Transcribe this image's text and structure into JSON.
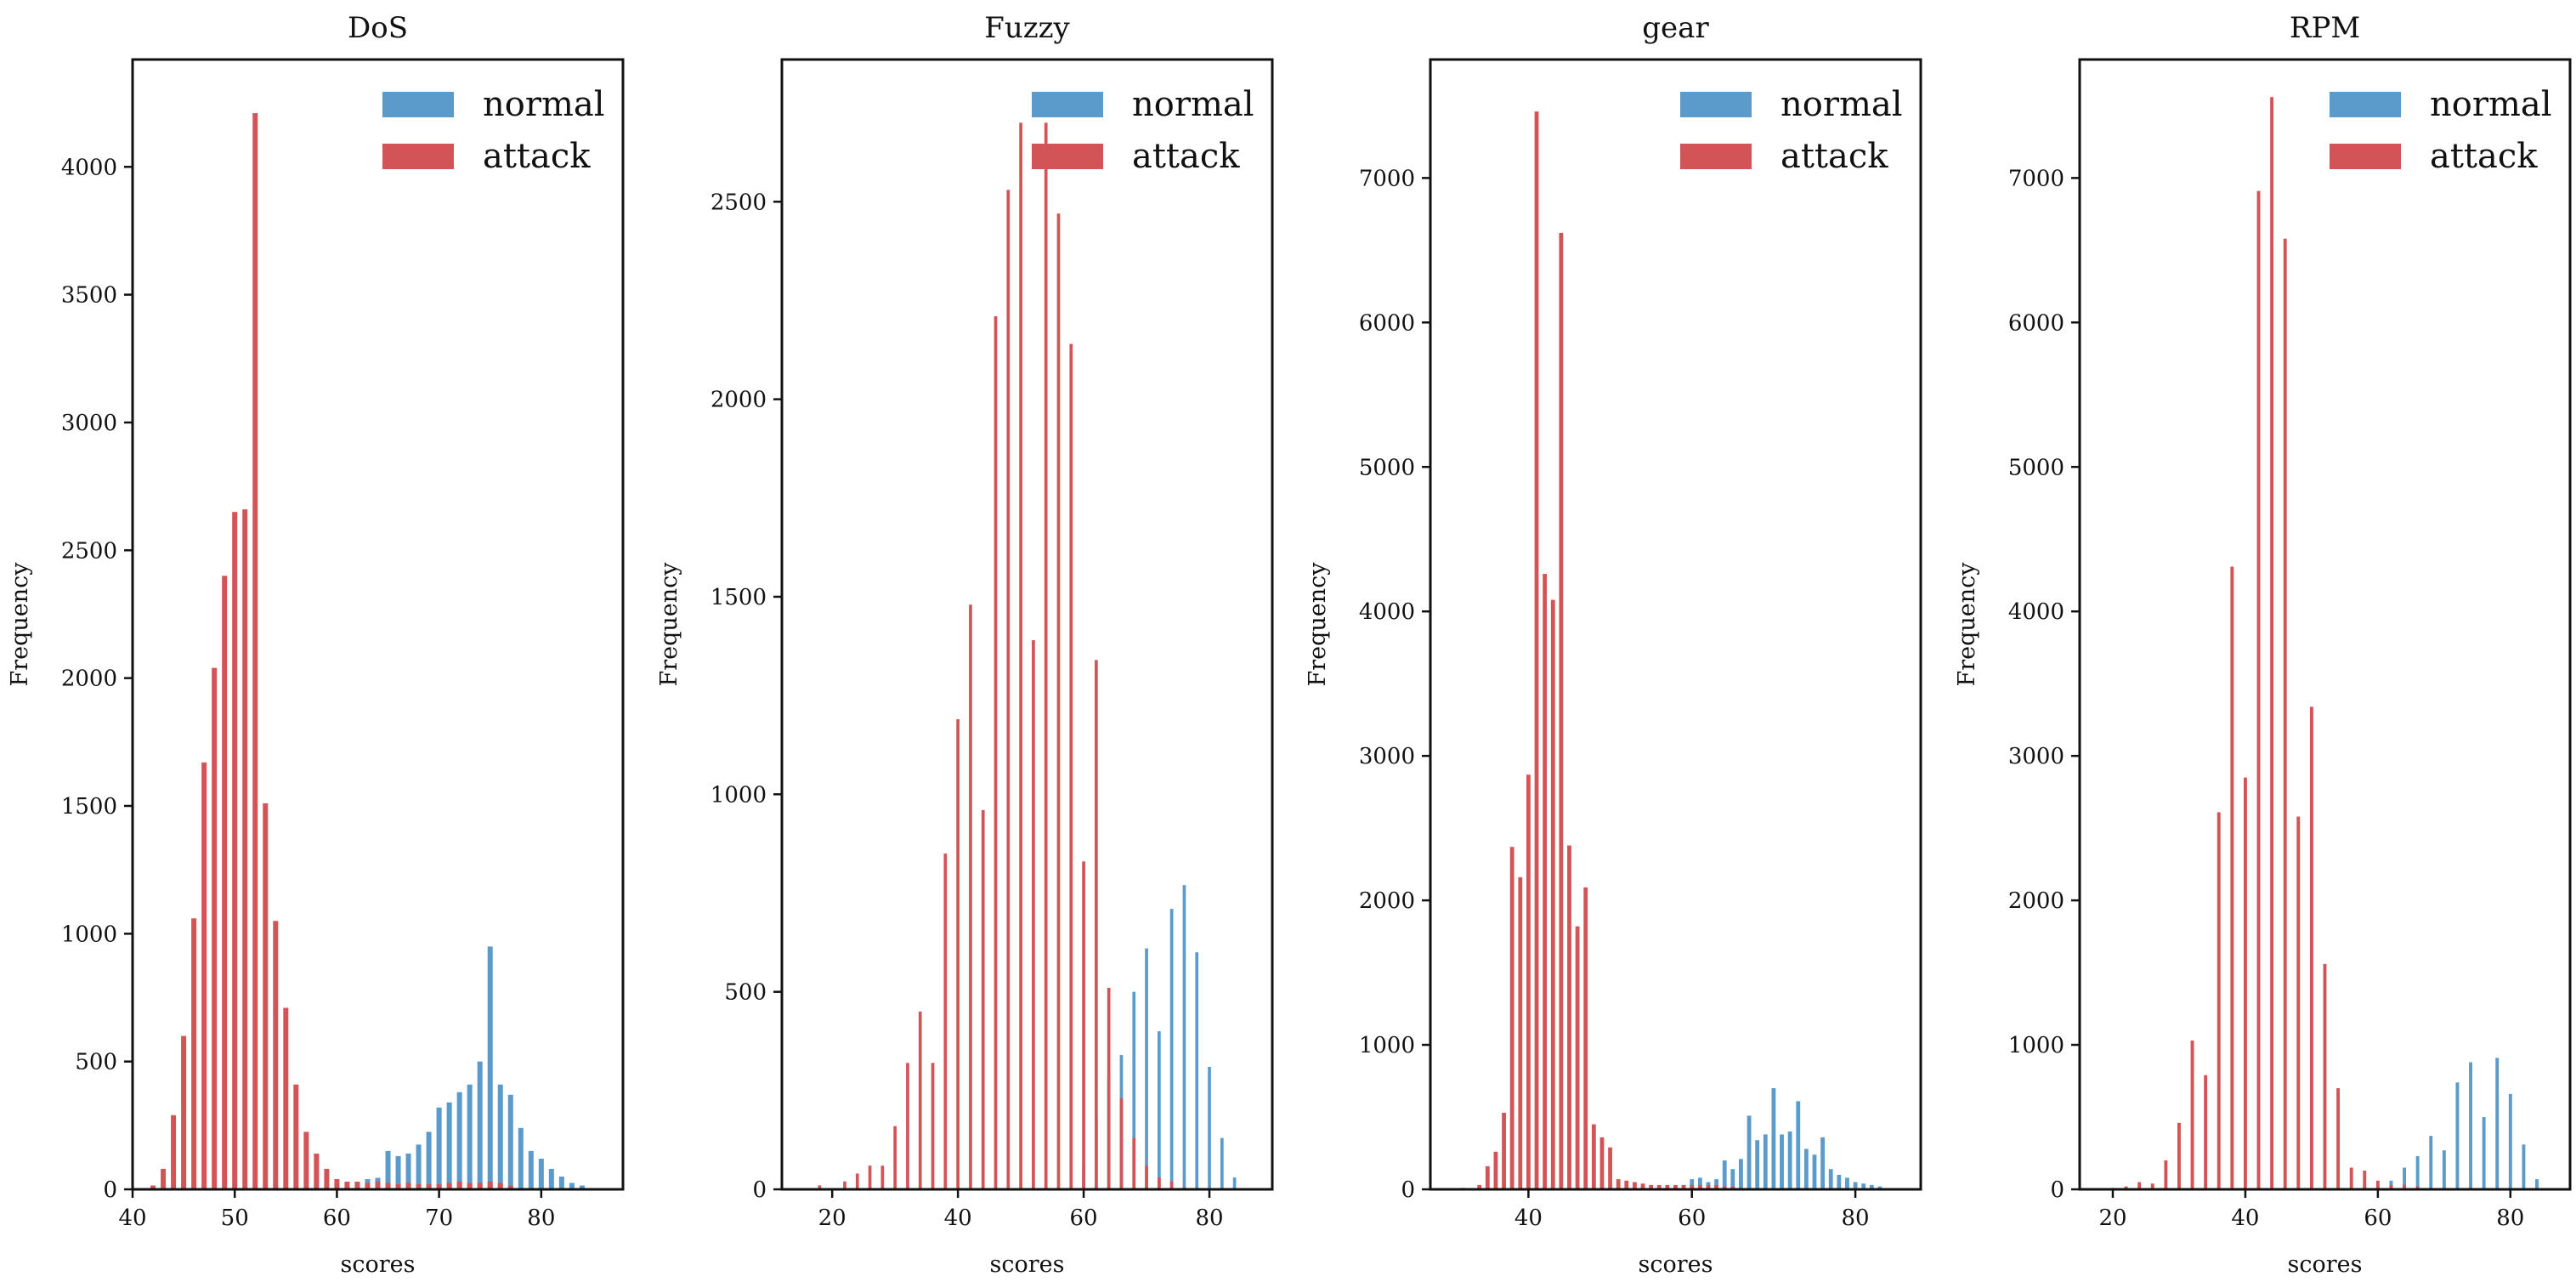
{
  "colors": {
    "normal": "#5a9bcc",
    "attack": "#d35456"
  },
  "chart_data": [
    {
      "type": "bar",
      "title": "DoS",
      "xlabel": "scores",
      "ylabel": "Frequency",
      "xlim": [
        40,
        88
      ],
      "ylim": [
        0,
        4420
      ],
      "xticks": [
        40,
        50,
        60,
        70,
        80
      ],
      "yticks": [
        0,
        500,
        1000,
        1500,
        2000,
        2500,
        3000,
        3500,
        4000
      ],
      "legend": {
        "position": "top-right",
        "labels": [
          "normal",
          "attack"
        ]
      },
      "series": [
        {
          "name": "normal",
          "x": [
            61,
            62,
            63,
            64,
            65,
            66,
            67,
            68,
            69,
            70,
            71,
            72,
            73,
            74,
            75,
            76,
            77,
            78,
            79,
            80,
            81,
            82,
            83,
            84
          ],
          "values": [
            10,
            25,
            40,
            45,
            150,
            130,
            140,
            175,
            225,
            320,
            340,
            380,
            410,
            500,
            950,
            410,
            370,
            240,
            150,
            120,
            80,
            50,
            25,
            15
          ]
        },
        {
          "name": "attack",
          "x": [
            42,
            43,
            44,
            45,
            46,
            47,
            48,
            49,
            50,
            51,
            52,
            53,
            54,
            55,
            56,
            57,
            58,
            59,
            60,
            61,
            62,
            63,
            64,
            65,
            66,
            67,
            68,
            69,
            70,
            71,
            72,
            73,
            74,
            75,
            76,
            77
          ],
          "values": [
            15,
            80,
            290,
            600,
            1060,
            1670,
            2040,
            2400,
            2650,
            2660,
            4210,
            1510,
            1050,
            710,
            410,
            225,
            140,
            80,
            40,
            30,
            30,
            25,
            30,
            25,
            20,
            25,
            20,
            20,
            20,
            25,
            30,
            25,
            25,
            30,
            25,
            15
          ]
        }
      ]
    },
    {
      "type": "bar",
      "title": "Fuzzy",
      "xlabel": "scores",
      "ylabel": "Frequency",
      "xlim": [
        12,
        90
      ],
      "ylim": [
        0,
        2860
      ],
      "xticks": [
        20,
        40,
        60,
        80
      ],
      "yticks": [
        0,
        500,
        1000,
        1500,
        2000,
        2500
      ],
      "legend": {
        "position": "top-right",
        "labels": [
          "normal",
          "attack"
        ]
      },
      "series": [
        {
          "name": "normal",
          "x": [
            58,
            60,
            62,
            64,
            66,
            68,
            70,
            72,
            74,
            76,
            78,
            80,
            82,
            84
          ],
          "values": [
            10,
            60,
            180,
            280,
            340,
            500,
            610,
            400,
            710,
            770,
            600,
            310,
            130,
            30
          ]
        },
        {
          "name": "attack",
          "x": [
            18,
            22,
            24,
            26,
            28,
            30,
            32,
            34,
            36,
            38,
            40,
            42,
            44,
            46,
            48,
            50,
            52,
            54,
            56,
            58,
            60,
            62,
            64,
            66,
            68,
            70,
            72,
            74,
            76
          ],
          "values": [
            10,
            20,
            40,
            60,
            60,
            160,
            320,
            450,
            320,
            850,
            1190,
            1480,
            960,
            2210,
            2530,
            2700,
            1390,
            2700,
            2470,
            2140,
            830,
            1340,
            510,
            230,
            130,
            60,
            30,
            20,
            5
          ]
        }
      ]
    },
    {
      "type": "bar",
      "title": "gear",
      "xlabel": "scores",
      "ylabel": "Frequency",
      "xlim": [
        28,
        88
      ],
      "ylim": [
        0,
        7820
      ],
      "xticks": [
        40,
        60,
        80
      ],
      "yticks": [
        0,
        1000,
        2000,
        3000,
        4000,
        5000,
        6000,
        7000
      ],
      "legend": {
        "position": "top-right",
        "labels": [
          "normal",
          "attack"
        ]
      },
      "series": [
        {
          "name": "normal",
          "x": [
            58,
            59,
            60,
            61,
            62,
            63,
            64,
            65,
            66,
            67,
            68,
            69,
            70,
            71,
            72,
            73,
            74,
            75,
            76,
            77,
            78,
            79,
            80,
            81,
            82,
            83
          ],
          "values": [
            20,
            30,
            70,
            80,
            50,
            70,
            200,
            140,
            210,
            510,
            340,
            380,
            700,
            380,
            400,
            610,
            280,
            240,
            360,
            140,
            100,
            80,
            50,
            40,
            30,
            20
          ]
        },
        {
          "name": "attack",
          "x": [
            32,
            34,
            35,
            36,
            37,
            38,
            39,
            40,
            41,
            42,
            43,
            44,
            45,
            46,
            47,
            48,
            49,
            50,
            51,
            52,
            53,
            54,
            55,
            56,
            57,
            58,
            59,
            60,
            61,
            62,
            63,
            64,
            65,
            66
          ],
          "values": [
            10,
            30,
            160,
            260,
            530,
            2370,
            2160,
            2870,
            7460,
            4260,
            4080,
            6620,
            2380,
            1820,
            2090,
            450,
            360,
            290,
            70,
            60,
            50,
            40,
            30,
            30,
            30,
            30,
            30,
            30,
            30,
            30,
            30,
            20,
            20,
            10
          ]
        }
      ]
    },
    {
      "type": "bar",
      "title": "RPM",
      "xlabel": "scores",
      "ylabel": "Frequency",
      "xlim": [
        15,
        89
      ],
      "ylim": [
        0,
        7820
      ],
      "xticks": [
        20,
        40,
        60,
        80
      ],
      "yticks": [
        0,
        1000,
        2000,
        3000,
        4000,
        5000,
        6000,
        7000
      ],
      "legend": {
        "position": "top-right",
        "labels": [
          "normal",
          "attack"
        ]
      },
      "series": [
        {
          "name": "normal",
          "x": [
            58,
            60,
            62,
            64,
            66,
            68,
            70,
            72,
            74,
            76,
            78,
            80,
            82,
            84
          ],
          "values": [
            20,
            30,
            60,
            150,
            230,
            370,
            270,
            740,
            880,
            500,
            910,
            660,
            310,
            70
          ]
        },
        {
          "name": "attack",
          "x": [
            20,
            22,
            24,
            26,
            28,
            30,
            32,
            34,
            36,
            38,
            40,
            42,
            44,
            46,
            48,
            50,
            52,
            54,
            56,
            58,
            60,
            62,
            64,
            66,
            68
          ],
          "values": [
            10,
            20,
            50,
            40,
            200,
            460,
            1030,
            790,
            2610,
            4310,
            2850,
            6910,
            7560,
            6580,
            2580,
            3340,
            1560,
            700,
            150,
            130,
            60,
            30,
            30,
            20,
            10
          ]
        }
      ]
    }
  ]
}
